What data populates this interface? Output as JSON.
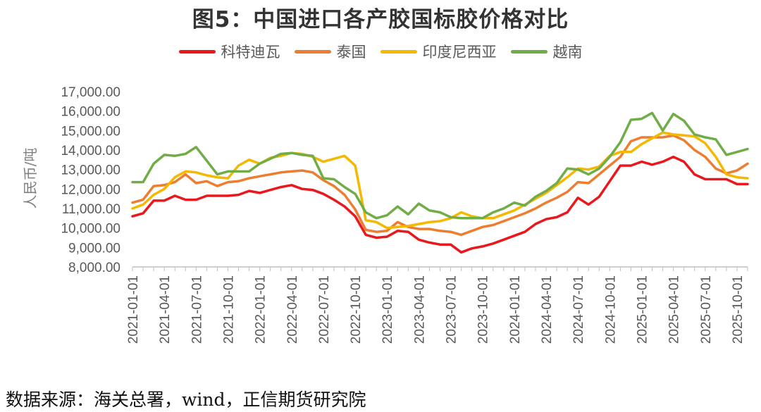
{
  "title": "图5：中国进口各产胶国标胶价格对比",
  "source": "数据来源：海关总署，wind，正信期货研究院",
  "chart_data": {
    "type": "line",
    "ylabel": "人民币/吨",
    "ylim": [
      8000,
      17000
    ],
    "yticks": [
      "17,000.00",
      "16,000.00",
      "15,000.00",
      "14,000.00",
      "13,000.00",
      "12,000.00",
      "11,000.00",
      "10,000.00",
      "9,000.00",
      "8,000.00"
    ],
    "xtick_labels": [
      "2021-01-01",
      "2021-04-01",
      "2021-07-01",
      "2021-10-01",
      "2022-01-01",
      "2022-04-01",
      "2022-07-01",
      "2022-10-01",
      "2023-01-01",
      "2023-04-01",
      "2023-07-01",
      "2023-10-01",
      "2024-01-01",
      "2024-04-01",
      "2024-07-01",
      "2024-10-01",
      "2025-01-01",
      "2025-04-01",
      "2025-07-01",
      "2025-10-01"
    ],
    "x": [
      "2021-01",
      "2021-02",
      "2021-03",
      "2021-04",
      "2021-05",
      "2021-06",
      "2021-07",
      "2021-08",
      "2021-09",
      "2021-10",
      "2021-11",
      "2021-12",
      "2022-01",
      "2022-02",
      "2022-03",
      "2022-04",
      "2022-05",
      "2022-06",
      "2022-07",
      "2022-08",
      "2022-09",
      "2022-10",
      "2022-11",
      "2022-12",
      "2023-01",
      "2023-02",
      "2023-03",
      "2023-04",
      "2023-05",
      "2023-06",
      "2023-07",
      "2023-08",
      "2023-09",
      "2023-10",
      "2023-11",
      "2023-12",
      "2024-01",
      "2024-02",
      "2024-03",
      "2024-04",
      "2024-05",
      "2024-06",
      "2024-07",
      "2024-08",
      "2024-09",
      "2024-10",
      "2024-11",
      "2024-12",
      "2025-01",
      "2025-02",
      "2025-03",
      "2025-04",
      "2025-05",
      "2025-06",
      "2025-07",
      "2025-08",
      "2025-09",
      "2025-10",
      "2025-11"
    ],
    "series": [
      {
        "name": "科特迪瓦",
        "color": "#e8181c",
        "values": [
          10600,
          10750,
          11400,
          11400,
          11650,
          11450,
          11450,
          11650,
          11650,
          11650,
          11700,
          11900,
          11800,
          11950,
          12100,
          12200,
          12000,
          11950,
          11750,
          11450,
          11100,
          10600,
          9650,
          9500,
          9550,
          9850,
          9800,
          9400,
          9250,
          9150,
          9150,
          8750,
          8950,
          9050,
          9200,
          9400,
          9600,
          9800,
          10200,
          10450,
          10550,
          10800,
          11550,
          11200,
          11600,
          12400,
          13200,
          13200,
          13400,
          13250,
          13400,
          13650,
          13400,
          12750,
          12500,
          12500,
          12500,
          12250,
          12250
        ]
      },
      {
        "name": "泰国",
        "color": "#ed7d31",
        "values": [
          11300,
          11450,
          12150,
          12200,
          12350,
          12750,
          12300,
          12400,
          12150,
          12350,
          12400,
          12550,
          12650,
          12750,
          12850,
          12900,
          12950,
          12850,
          12450,
          12150,
          11700,
          10950,
          9900,
          9800,
          9850,
          10300,
          10050,
          9950,
          9950,
          9850,
          9800,
          9650,
          9850,
          10050,
          10150,
          10350,
          10550,
          10750,
          11000,
          11300,
          11550,
          11850,
          12350,
          12300,
          12750,
          13200,
          13650,
          14450,
          14650,
          14650,
          14650,
          14750,
          14500,
          14000,
          13650,
          13050,
          12800,
          12950,
          13300
        ]
      },
      {
        "name": "印度尼西亚",
        "color": "#f5b800",
        "values": [
          11000,
          11200,
          11700,
          12000,
          12600,
          12900,
          12850,
          12700,
          12600,
          12550,
          13200,
          13500,
          13300,
          13600,
          13700,
          13850,
          13800,
          13650,
          13400,
          13550,
          13700,
          13200,
          10400,
          10300,
          10000,
          10050,
          10100,
          10200,
          10300,
          10350,
          10500,
          10800,
          10600,
          10500,
          10500,
          10700,
          10900,
          11200,
          11500,
          11800,
          12200,
          12600,
          13050,
          13000,
          13150,
          13700,
          13900,
          13900,
          14300,
          14600,
          14900,
          14800,
          14750,
          14700,
          14350,
          13650,
          12750,
          12600,
          12550
        ]
      },
      {
        "name": "越南",
        "color": "#70ad47",
        "values": [
          12350,
          12350,
          13300,
          13750,
          13700,
          13800,
          14150,
          13450,
          12750,
          12900,
          12900,
          12900,
          13300,
          13550,
          13800,
          13850,
          13750,
          13700,
          12550,
          12500,
          12100,
          11750,
          10800,
          10500,
          10650,
          11100,
          10700,
          11250,
          10900,
          10800,
          10550,
          10500,
          10500,
          10500,
          10800,
          11000,
          11300,
          11150,
          11600,
          11900,
          12300,
          13050,
          13000,
          12750,
          13050,
          13650,
          14400,
          15550,
          15600,
          15900,
          15000,
          15850,
          15500,
          14800,
          14650,
          14550,
          13750,
          13900,
          14050
        ]
      }
    ]
  }
}
